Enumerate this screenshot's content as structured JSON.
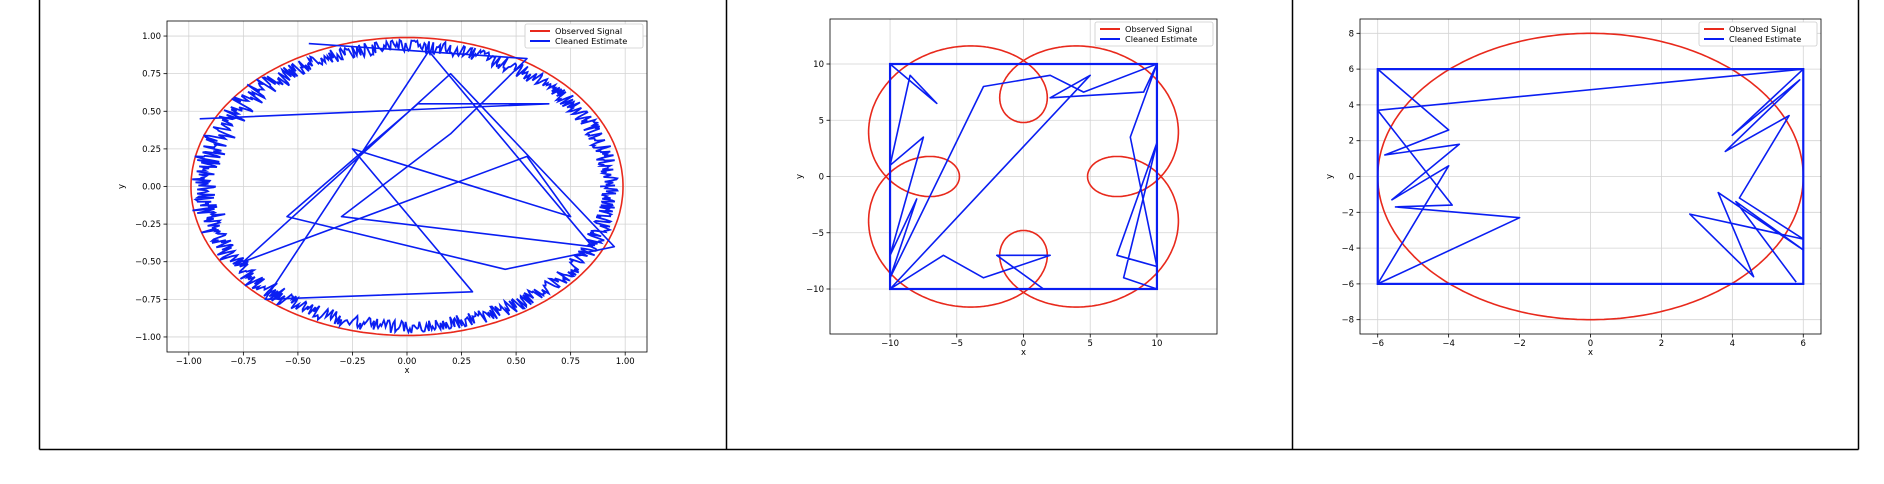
{
  "chart_data": [
    {
      "type": "line",
      "xlabel": "x",
      "ylabel": "y",
      "xlim": [
        -1.1,
        1.1
      ],
      "ylim": [
        -1.1,
        1.1
      ],
      "xticks": [
        -1.0,
        -0.75,
        -0.5,
        -0.25,
        0.0,
        0.25,
        0.5,
        0.75,
        1.0
      ],
      "yticks": [
        -1.0,
        -0.75,
        -0.5,
        -0.25,
        0.0,
        0.25,
        0.5,
        0.75,
        1.0
      ],
      "xtick_labels": [
        "−1.00",
        "−0.75",
        "−0.50",
        "−0.25",
        "0.00",
        "0.25",
        "0.50",
        "0.75",
        "1.00"
      ],
      "ytick_labels": [
        "−1.00",
        "−0.75",
        "−0.50",
        "−0.25",
        "0.00",
        "0.25",
        "0.50",
        "0.75",
        "1.00"
      ],
      "grid": true,
      "legend_position": "top-right",
      "series": [
        {
          "name": "Observed Signal",
          "color": "#e8291c",
          "shape": "circle",
          "radius": 0.99
        },
        {
          "name": "Cleaned Estimate",
          "color": "#0a1ef2",
          "shape": "noisy-ring",
          "x": [
            -0.45,
            0.55,
            0.2,
            -0.3,
            0.85,
            0.1,
            -0.65,
            0.3,
            -0.25,
            0.75,
            0.55,
            -0.75,
            0.2,
            0.95,
            0.45,
            -0.55,
            0.05,
            0.65,
            -0.95
          ],
          "y": [
            0.95,
            0.85,
            0.35,
            -0.2,
            -0.4,
            0.9,
            -0.75,
            -0.7,
            0.25,
            -0.2,
            0.2,
            -0.5,
            0.75,
            -0.4,
            -0.55,
            -0.2,
            0.55,
            0.55,
            0.45
          ]
        }
      ]
    },
    {
      "type": "line",
      "xlabel": "x",
      "ylabel": "y",
      "xlim": [
        -14.5,
        14.5
      ],
      "ylim": [
        -14,
        14
      ],
      "xticks": [
        -10,
        -5,
        0,
        5,
        10
      ],
      "yticks": [
        -10,
        -5,
        0,
        5,
        10
      ],
      "xtick_labels": [
        "−10",
        "−5",
        "0",
        "5",
        "10"
      ],
      "ytick_labels": [
        "−10",
        "−5",
        "0",
        "5",
        "10"
      ],
      "grid": true,
      "legend_position": "top-right",
      "series": [
        {
          "name": "Observed Signal",
          "color": "#e8291c",
          "shape": "epitrochoid"
        },
        {
          "name": "Cleaned Estimate",
          "color": "#0a1ef2",
          "shape": "box-with-segments",
          "box": [
            -10,
            10,
            -10,
            10
          ],
          "x": [
            -10,
            -6.5,
            -8.5,
            -10,
            -7.5,
            -10,
            -8,
            -10,
            -3,
            2,
            4.5,
            10,
            8,
            10,
            7,
            10,
            7.5,
            10,
            1.5,
            -2,
            2,
            -3,
            -6,
            -10,
            5,
            2,
            9,
            10
          ],
          "y": [
            10,
            6.5,
            9,
            1,
            3.5,
            -7,
            -2,
            -9,
            8,
            9,
            7.5,
            10,
            3.5,
            -8,
            -7,
            3,
            -9,
            -10,
            -10,
            -7,
            -7,
            -9,
            -7,
            -10,
            9,
            7,
            7.5,
            10
          ]
        }
      ]
    },
    {
      "type": "line",
      "xlabel": "x",
      "ylabel": "y",
      "xlim": [
        -6.5,
        6.5
      ],
      "ylim": [
        -8.8,
        8.8
      ],
      "xticks": [
        -6,
        -4,
        -2,
        0,
        2,
        4,
        6
      ],
      "yticks": [
        -8,
        -6,
        -4,
        -2,
        0,
        2,
        4,
        6,
        8
      ],
      "xtick_labels": [
        "−6",
        "−4",
        "−2",
        "0",
        "2",
        "4",
        "6"
      ],
      "ytick_labels": [
        "−8",
        "−6",
        "−4",
        "−2",
        "0",
        "2",
        "4",
        "6",
        "8"
      ],
      "grid": true,
      "legend_position": "top-right",
      "series": [
        {
          "name": "Observed Signal",
          "color": "#e8291c",
          "shape": "ellipse",
          "a": 6,
          "b": 8
        },
        {
          "name": "Cleaned Estimate",
          "color": "#0a1ef2",
          "shape": "box-with-segments",
          "box": [
            -6,
            6,
            -6,
            6
          ],
          "x": [
            -6,
            -4,
            -5.8,
            -3.7,
            -5.6,
            -4,
            -6,
            -2,
            -5.5,
            -3.9,
            -6,
            6,
            4,
            5.9,
            3.8,
            5.6,
            4.2,
            6,
            2.8,
            4.6,
            3.6,
            6,
            4.1,
            5.8
          ],
          "y": [
            6,
            2.6,
            1.2,
            1.8,
            -1.3,
            0.6,
            -6,
            -2.3,
            -1.7,
            -1.6,
            3.7,
            6,
            2.3,
            5.4,
            1.4,
            3.4,
            -1.2,
            -3.5,
            -2.1,
            -5.6,
            -0.9,
            -4.1,
            -1.4,
            -5.9
          ]
        }
      ]
    }
  ]
}
